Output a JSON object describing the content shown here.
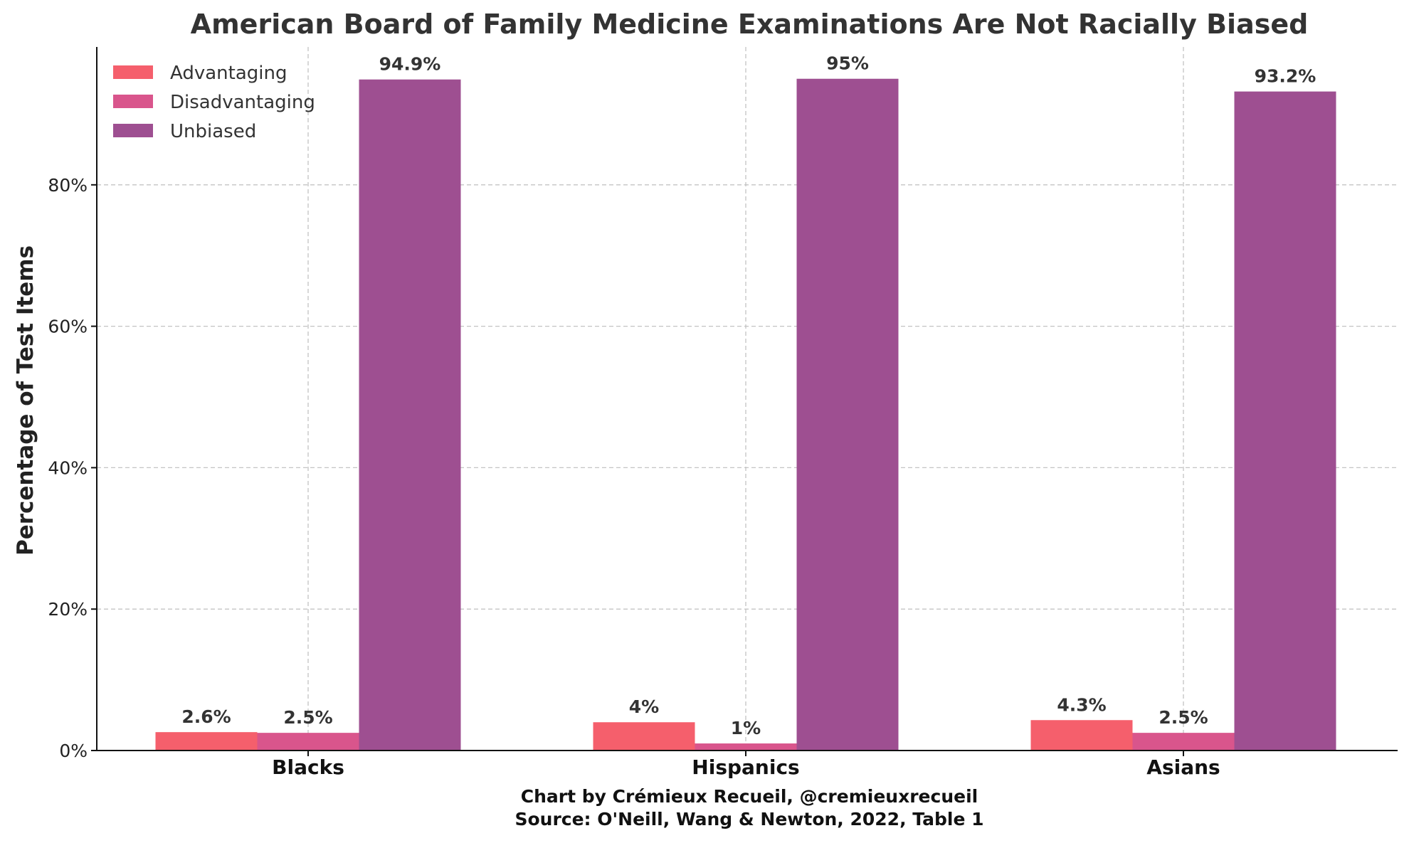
{
  "chart_data": {
    "type": "bar",
    "title": "American Board of Family Medicine Examinations Are Not Racially Biased",
    "xlabel": "",
    "ylabel": "Percentage of Test Items",
    "categories": [
      "Blacks",
      "Hispanics",
      "Asians"
    ],
    "series": [
      {
        "name": "Advantaging",
        "values": [
          2.6,
          4,
          4.3
        ],
        "labels": [
          "2.6%",
          "4%",
          "4.3%"
        ],
        "color": "#f55f6c"
      },
      {
        "name": "Disadvantaging",
        "values": [
          2.5,
          1,
          2.5
        ],
        "labels": [
          "2.5%",
          "1%",
          "2.5%"
        ],
        "color": "#d9558c"
      },
      {
        "name": "Unbiased",
        "values": [
          94.9,
          95,
          93.2
        ],
        "labels": [
          "94.9%",
          "95%",
          "93.2%"
        ],
        "color": "#9e4f91"
      }
    ],
    "ylim": [
      0,
      99.5
    ],
    "yticks": [
      0,
      20,
      40,
      60,
      80
    ],
    "ytick_labels": [
      "0%",
      "20%",
      "40%",
      "60%",
      "80%"
    ],
    "grid": true,
    "legend_position": "top-left",
    "caption_lines": [
      "Chart by Crémieux Recueil, @cremieuxrecueil",
      "Source: O'Neill, Wang & Newton, 2022, Table 1"
    ]
  }
}
